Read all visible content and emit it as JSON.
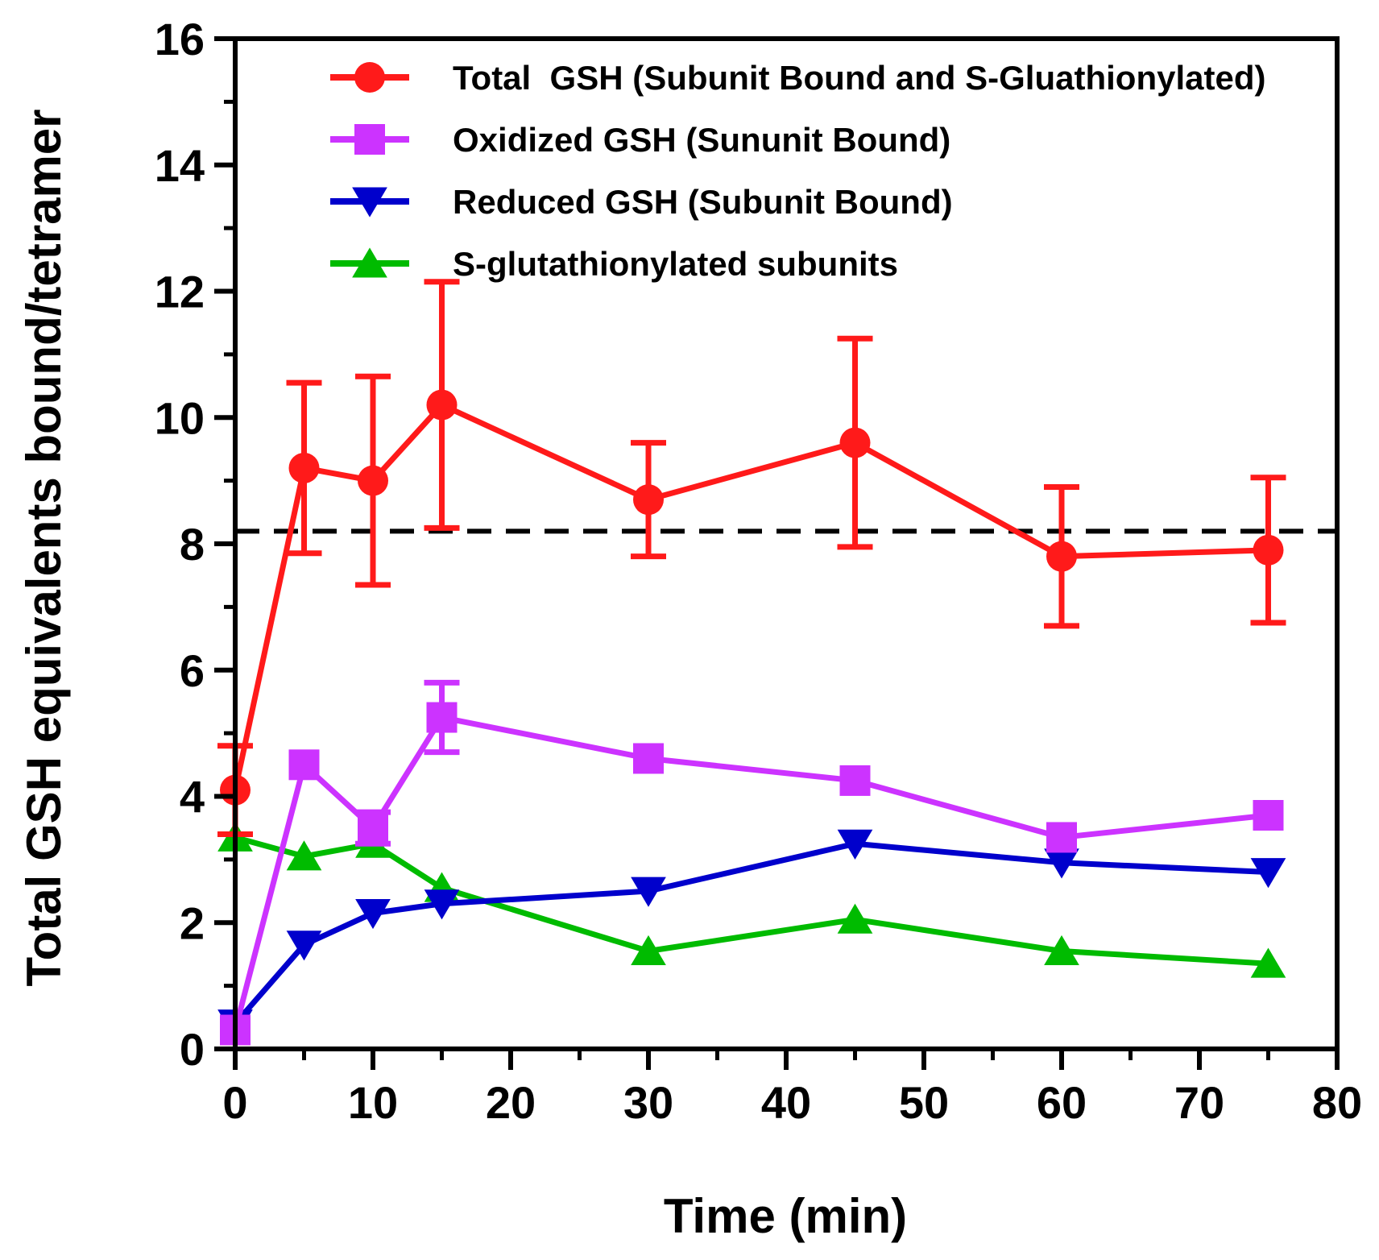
{
  "chart_data": {
    "type": "line",
    "title": "",
    "xlabel": "Time (min)",
    "ylabel": "Total GSH equivalents bound/tetramer",
    "xlim": [
      0,
      80
    ],
    "ylim": [
      0,
      16
    ],
    "xticks": [
      0,
      10,
      20,
      30,
      40,
      50,
      60,
      70,
      80
    ],
    "yticks": [
      0,
      2,
      4,
      6,
      8,
      10,
      12,
      14,
      16
    ],
    "xtick_labels": [
      "0",
      "10",
      "20",
      "30",
      "40",
      "50",
      "60",
      "70",
      "80"
    ],
    "ytick_labels": [
      "0",
      "2",
      "4",
      "6",
      "8",
      "10",
      "12",
      "14",
      "16"
    ],
    "grid": false,
    "legend_position": "top-right",
    "reference_line": {
      "y": 8.2,
      "style": "dashed",
      "color": "#000000"
    },
    "x": [
      0,
      5,
      10,
      15,
      30,
      45,
      60,
      75
    ],
    "series": [
      {
        "name": "Total  GSH (Subunit Bound and S-Gluathionylated)",
        "color": "#ff1a1a",
        "marker": "circle",
        "values": [
          4.1,
          9.2,
          9.0,
          10.2,
          8.7,
          9.6,
          7.8,
          7.9
        ],
        "errors": [
          0.7,
          1.35,
          1.65,
          1.95,
          0.9,
          1.65,
          1.1,
          1.15
        ]
      },
      {
        "name": "Oxidized GSH (Sununit Bound)",
        "color": "#cc33ff",
        "marker": "square",
        "values": [
          0.3,
          4.5,
          3.5,
          5.25,
          4.6,
          4.25,
          3.35,
          3.7
        ],
        "errors": [
          0,
          0,
          0.25,
          0.55,
          0,
          0,
          0,
          0
        ]
      },
      {
        "name": "Reduced GSH (Subunit Bound)",
        "color": "#0000cc",
        "marker": "triangle-down",
        "values": [
          0.4,
          1.65,
          2.15,
          2.3,
          2.5,
          3.25,
          2.95,
          2.8
        ],
        "errors": [
          0,
          0,
          0,
          0,
          0,
          0,
          0,
          0
        ]
      },
      {
        "name": "S-glutathionylated subunits",
        "color": "#00bb00",
        "marker": "triangle-up",
        "values": [
          3.35,
          3.05,
          3.25,
          2.55,
          1.55,
          2.05,
          1.55,
          1.35
        ],
        "errors": [
          0,
          0,
          0,
          0,
          0,
          0,
          0,
          0
        ]
      }
    ]
  }
}
